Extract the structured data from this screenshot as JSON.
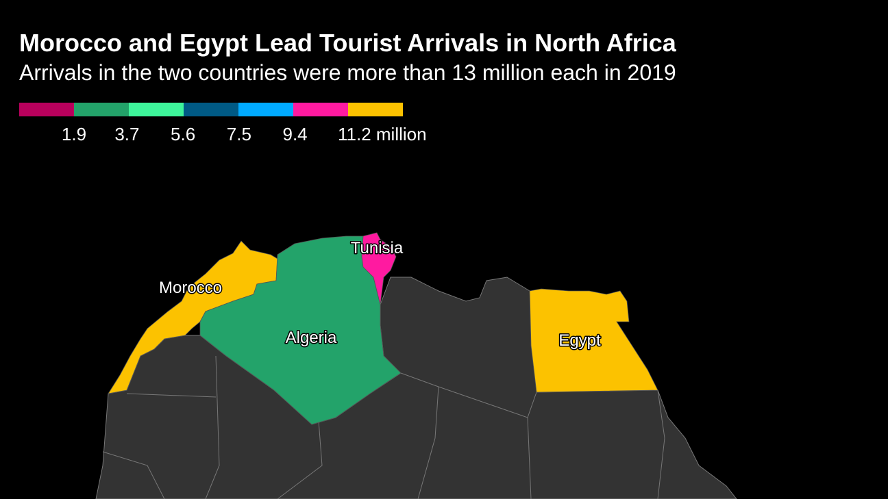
{
  "header": {
    "title": "Morocco and Egypt Lead Tourist Arrivals in North Africa",
    "subtitle": "Arrivals in the two countries were more than 13 million each in 2019"
  },
  "legend": {
    "colors": [
      "#b8005c",
      "#23a36a",
      "#3ef59b",
      "#005a85",
      "#00aaff",
      "#ff1aa0",
      "#fcc200"
    ],
    "ticks": [
      1.9,
      3.7,
      5.6,
      7.5,
      9.4,
      {
        "value": 11.2,
        "label": "11.2 million"
      }
    ]
  },
  "regions": [
    {
      "label": "Morocco",
      "color": "#fcc200"
    },
    {
      "label": "Algeria",
      "color": "#23a36a"
    },
    {
      "label": "Tunisia",
      "color": "#ff1aa0"
    },
    {
      "label": "Egypt",
      "color": "#fcc200"
    }
  ]
}
